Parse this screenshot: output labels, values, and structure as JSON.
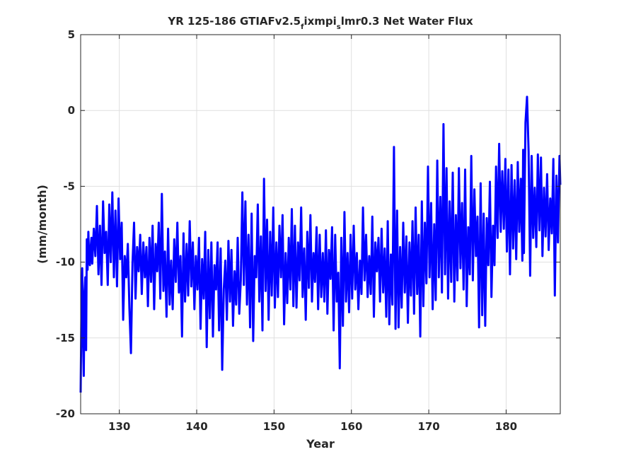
{
  "chart_data": {
    "type": "line",
    "title_parts": [
      "YR 125-186 GTIAFv2.5",
      "f",
      "ixmpi",
      "s",
      "lmr0.3 Net Water Flux"
    ],
    "xlabel": "Year",
    "ylabel": "(mm/month)",
    "xlim": [
      125,
      187
    ],
    "ylim": [
      -20,
      5
    ],
    "xticks": [
      130,
      140,
      150,
      160,
      170,
      180
    ],
    "yticks": [
      5,
      0,
      -5,
      -10,
      -15,
      -20
    ],
    "xtick_labels": [
      "130",
      "140",
      "150",
      "160",
      "170",
      "180"
    ],
    "ytick_labels": [
      "5",
      "0",
      "-5",
      "-10",
      "-15",
      "-20"
    ],
    "grid": true,
    "series": [
      {
        "color": "#0000ff",
        "x": [
          125.0,
          125.1,
          125.2,
          125.3,
          125.4,
          125.5,
          125.6,
          125.7,
          125.8,
          125.9,
          126.0,
          126.1,
          126.2,
          126.3,
          126.4,
          126.5,
          126.7,
          126.9,
          127.1,
          127.3,
          127.5,
          127.7,
          127.9,
          128.1,
          128.3,
          128.5,
          128.7,
          128.9,
          129.1,
          129.3,
          129.5,
          129.7,
          129.9,
          130.1,
          130.3,
          130.5,
          130.7,
          130.9,
          131.1,
          131.3,
          131.5,
          131.7,
          131.9,
          132.1,
          132.3,
          132.5,
          132.7,
          132.9,
          133.1,
          133.3,
          133.5,
          133.7,
          133.9,
          134.1,
          134.3,
          134.5,
          134.7,
          134.9,
          135.1,
          135.3,
          135.5,
          135.7,
          135.9,
          136.1,
          136.3,
          136.5,
          136.7,
          136.9,
          137.1,
          137.3,
          137.5,
          137.7,
          137.9,
          138.1,
          138.3,
          138.5,
          138.7,
          138.9,
          139.1,
          139.3,
          139.5,
          139.7,
          139.9,
          140.1,
          140.3,
          140.5,
          140.7,
          140.9,
          141.1,
          141.3,
          141.5,
          141.7,
          141.9,
          142.1,
          142.3,
          142.5,
          142.7,
          142.9,
          143.1,
          143.3,
          143.5,
          143.7,
          143.9,
          144.1,
          144.3,
          144.5,
          144.7,
          144.9,
          145.1,
          145.3,
          145.5,
          145.7,
          145.9,
          146.1,
          146.3,
          146.5,
          146.7,
          146.9,
          147.1,
          147.3,
          147.5,
          147.7,
          147.9,
          148.1,
          148.3,
          148.5,
          148.7,
          148.9,
          149.1,
          149.3,
          149.5,
          149.7,
          149.9,
          150.1,
          150.3,
          150.5,
          150.7,
          150.9,
          151.1,
          151.3,
          151.5,
          151.7,
          151.9,
          152.1,
          152.3,
          152.5,
          152.7,
          152.9,
          153.1,
          153.3,
          153.5,
          153.7,
          153.9,
          154.1,
          154.3,
          154.5,
          154.7,
          154.9,
          155.1,
          155.3,
          155.5,
          155.7,
          155.9,
          156.1,
          156.3,
          156.5,
          156.7,
          156.9,
          157.1,
          157.3,
          157.5,
          157.7,
          157.9,
          158.1,
          158.3,
          158.5,
          158.7,
          158.9,
          159.1,
          159.3,
          159.5,
          159.7,
          159.9,
          160.1,
          160.3,
          160.5,
          160.7,
          160.9,
          161.1,
          161.3,
          161.5,
          161.7,
          161.9,
          162.1,
          162.3,
          162.5,
          162.7,
          162.9,
          163.1,
          163.3,
          163.5,
          163.7,
          163.9,
          164.1,
          164.3,
          164.5,
          164.7,
          164.9,
          165.1,
          165.3,
          165.5,
          165.7,
          165.9,
          166.1,
          166.3,
          166.5,
          166.7,
          166.9,
          167.1,
          167.3,
          167.5,
          167.7,
          167.9,
          168.1,
          168.3,
          168.5,
          168.7,
          168.9,
          169.1,
          169.3,
          169.5,
          169.7,
          169.9,
          170.1,
          170.3,
          170.5,
          170.7,
          170.9,
          171.1,
          171.3,
          171.5,
          171.7,
          171.9,
          172.1,
          172.3,
          172.5,
          172.7,
          172.9,
          173.1,
          173.3,
          173.5,
          173.7,
          173.9,
          174.1,
          174.3,
          174.5,
          174.7,
          174.9,
          175.1,
          175.3,
          175.5,
          175.7,
          175.9,
          176.1,
          176.3,
          176.5,
          176.7,
          176.9,
          177.1,
          177.3,
          177.5,
          177.7,
          177.9,
          178.1,
          178.3,
          178.5,
          178.7,
          178.9,
          179.1,
          179.3,
          179.5,
          179.7,
          179.9,
          180.1,
          180.3,
          180.5,
          180.7,
          180.9,
          181.1,
          181.3,
          181.5,
          181.7,
          181.9,
          182.1,
          182.2,
          182.3,
          182.5,
          182.7,
          182.9,
          183.1,
          183.3,
          183.5,
          183.7,
          183.9,
          184.1,
          184.3,
          184.5,
          184.7,
          184.9,
          185.1,
          185.3,
          185.5,
          185.7,
          185.9,
          186.1,
          186.3,
          186.5,
          186.7,
          186.9,
          187.0
        ],
        "y": [
          -18.6,
          -13.2,
          -10.4,
          -14.8,
          -17.5,
          -12.0,
          -11.0,
          -15.8,
          -8.5,
          -10.5,
          -8.0,
          -9.8,
          -10.2,
          -9.0,
          -8.4,
          -10.1,
          -7.8,
          -9.6,
          -6.3,
          -10.8,
          -7.6,
          -11.5,
          -6.0,
          -9.4,
          -8.0,
          -11.5,
          -6.2,
          -10.0,
          -5.4,
          -11.0,
          -6.6,
          -11.6,
          -5.8,
          -9.8,
          -7.4,
          -13.8,
          -9.6,
          -11.0,
          -8.8,
          -13.0,
          -16.0,
          -10.1,
          -7.4,
          -12.4,
          -9.0,
          -10.6,
          -8.2,
          -12.1,
          -8.7,
          -11.0,
          -9.0,
          -12.9,
          -8.4,
          -11.3,
          -7.6,
          -13.1,
          -8.8,
          -10.6,
          -7.4,
          -12.4,
          -5.5,
          -11.9,
          -9.3,
          -13.6,
          -7.8,
          -12.8,
          -9.9,
          -13.1,
          -8.5,
          -11.3,
          -7.4,
          -12.0,
          -9.6,
          -14.9,
          -8.1,
          -12.6,
          -8.8,
          -12.2,
          -7.3,
          -11.6,
          -8.7,
          -13.1,
          -9.6,
          -11.8,
          -8.4,
          -14.4,
          -9.8,
          -12.4,
          -8.0,
          -15.6,
          -9.2,
          -13.7,
          -8.7,
          -14.9,
          -10.2,
          -11.8,
          -8.7,
          -14.5,
          -9.1,
          -17.1,
          -11.8,
          -9.9,
          -13.8,
          -8.6,
          -12.6,
          -9.2,
          -14.2,
          -10.6,
          -12.8,
          -8.4,
          -13.4,
          -11.2,
          -5.4,
          -11.5,
          -6.0,
          -12.8,
          -8.2,
          -14.3,
          -6.8,
          -15.2,
          -9.6,
          -11.0,
          -6.2,
          -12.6,
          -8.3,
          -14.5,
          -4.5,
          -11.9,
          -7.2,
          -13.8,
          -8.0,
          -12.2,
          -6.4,
          -13.0,
          -8.7,
          -12.3,
          -7.6,
          -11.0,
          -6.9,
          -14.1,
          -9.4,
          -12.7,
          -8.4,
          -11.8,
          -6.5,
          -12.9,
          -7.6,
          -13.0,
          -8.7,
          -11.2,
          -6.4,
          -12.3,
          -9.1,
          -13.8,
          -8.0,
          -11.7,
          -6.9,
          -12.6,
          -9.4,
          -11.3,
          -7.7,
          -13.1,
          -8.2,
          -12.3,
          -9.4,
          -12.6,
          -7.9,
          -13.4,
          -9.2,
          -11.1,
          -7.7,
          -14.5,
          -8.2,
          -12.6,
          -10.7,
          -17.0,
          -8.4,
          -14.2,
          -6.7,
          -12.6,
          -9.4,
          -13.3,
          -8.2,
          -12.4,
          -7.6,
          -11.8,
          -9.4,
          -13.1,
          -9.9,
          -12.1,
          -6.4,
          -11.2,
          -8.2,
          -12.3,
          -9.6,
          -12.1,
          -7.0,
          -13.6,
          -8.7,
          -10.6,
          -8.4,
          -12.6,
          -7.8,
          -12.0,
          -9.1,
          -13.6,
          -7.3,
          -14.1,
          -9.5,
          -12.8,
          -2.4,
          -14.4,
          -6.6,
          -14.3,
          -9.0,
          -13.0,
          -7.4,
          -12.0,
          -8.3,
          -14.0,
          -8.7,
          -12.2,
          -7.3,
          -13.4,
          -6.4,
          -12.1,
          -8.2,
          -14.9,
          -6.0,
          -12.9,
          -7.4,
          -11.4,
          -3.7,
          -11.0,
          -6.1,
          -13.1,
          -7.5,
          -12.5,
          -3.3,
          -11.0,
          -5.7,
          -12.0,
          -0.9,
          -10.8,
          -3.8,
          -12.4,
          -6.0,
          -11.3,
          -4.1,
          -12.6,
          -6.9,
          -11.2,
          -3.8,
          -10.4,
          -6.1,
          -11.8,
          -3.9,
          -12.9,
          -7.7,
          -10.8,
          -3.0,
          -11.2,
          -5.2,
          -9.6,
          -7.0,
          -14.3,
          -4.8,
          -13.5,
          -6.8,
          -14.2,
          -7.1,
          -10.2,
          -4.7,
          -12.3,
          -7.6,
          -10.2,
          -3.7,
          -8.4,
          -2.2,
          -8.0,
          -4.0,
          -7.8,
          -3.2,
          -9.3,
          -3.9,
          -10.8,
          -3.6,
          -9.1,
          -4.6,
          -9.8,
          -3.4,
          -8.0,
          -4.5,
          -9.9,
          -2.6,
          -9.4,
          -0.8,
          0.9,
          -2.7,
          -10.9,
          -3.0,
          -8.4,
          -5.1,
          -9.0,
          -2.9,
          -7.9,
          -3.1,
          -9.6,
          -5.1,
          -8.3,
          -4.2,
          -9.2,
          -5.8,
          -8.1,
          -3.2,
          -12.2,
          -4.3,
          -8.7,
          -3.0,
          -4.9
        ]
      }
    ]
  }
}
